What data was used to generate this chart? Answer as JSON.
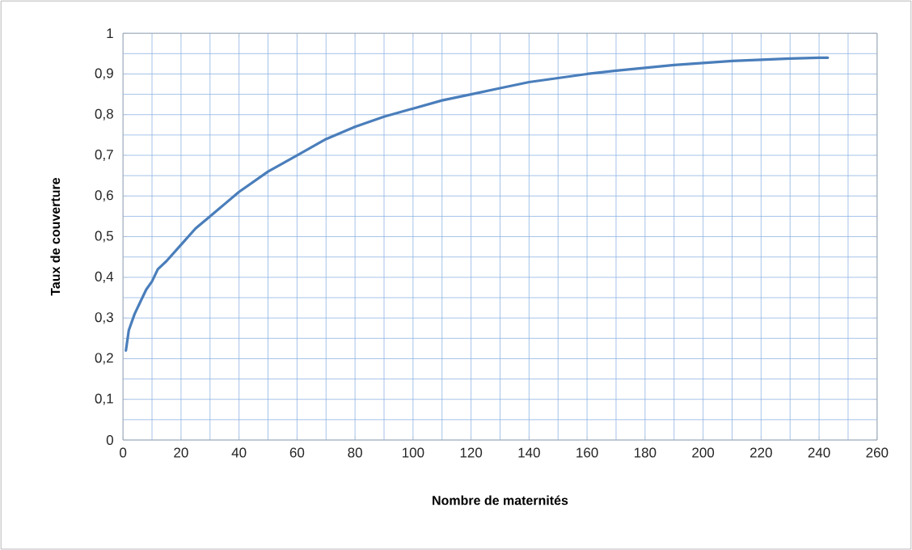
{
  "chart_data": {
    "type": "line",
    "xlabel": "Nombre de maternités",
    "ylabel": "Taux de couverture",
    "x": [
      1,
      2,
      4,
      6,
      8,
      10,
      12,
      15,
      20,
      25,
      30,
      35,
      40,
      50,
      60,
      70,
      80,
      90,
      100,
      110,
      120,
      130,
      140,
      150,
      160,
      170,
      180,
      190,
      200,
      210,
      220,
      230,
      240,
      243
    ],
    "series": [
      {
        "color": "#4a7ebb",
        "values": [
          0.22,
          0.27,
          0.31,
          0.34,
          0.37,
          0.39,
          0.42,
          0.44,
          0.48,
          0.52,
          0.55,
          0.58,
          0.61,
          0.66,
          0.7,
          0.74,
          0.77,
          0.795,
          0.815,
          0.835,
          0.85,
          0.865,
          0.88,
          0.89,
          0.9,
          0.908,
          0.915,
          0.922,
          0.927,
          0.932,
          0.935,
          0.938,
          0.94,
          0.94
        ]
      }
    ],
    "xlim": [
      0,
      260
    ],
    "xticks": [
      0,
      20,
      40,
      60,
      80,
      100,
      120,
      140,
      160,
      180,
      200,
      220,
      240,
      260
    ],
    "ylim": [
      0,
      1
    ],
    "yticks": [
      0,
      {
        "value": 0.1,
        "label": "0,1"
      },
      {
        "value": 0.2,
        "label": "0,2"
      },
      {
        "value": 0.3,
        "label": "0,3"
      },
      {
        "value": 0.4,
        "label": "0,4"
      },
      {
        "value": 0.5,
        "label": "0,5"
      },
      {
        "value": 0.6,
        "label": "0,6"
      },
      {
        "value": 0.7,
        "label": "0,7"
      },
      {
        "value": 0.8,
        "label": "0,8"
      },
      {
        "value": 0.9,
        "label": "0,9"
      },
      1
    ],
    "grid": true,
    "marker": "none",
    "line_style": "solid"
  }
}
